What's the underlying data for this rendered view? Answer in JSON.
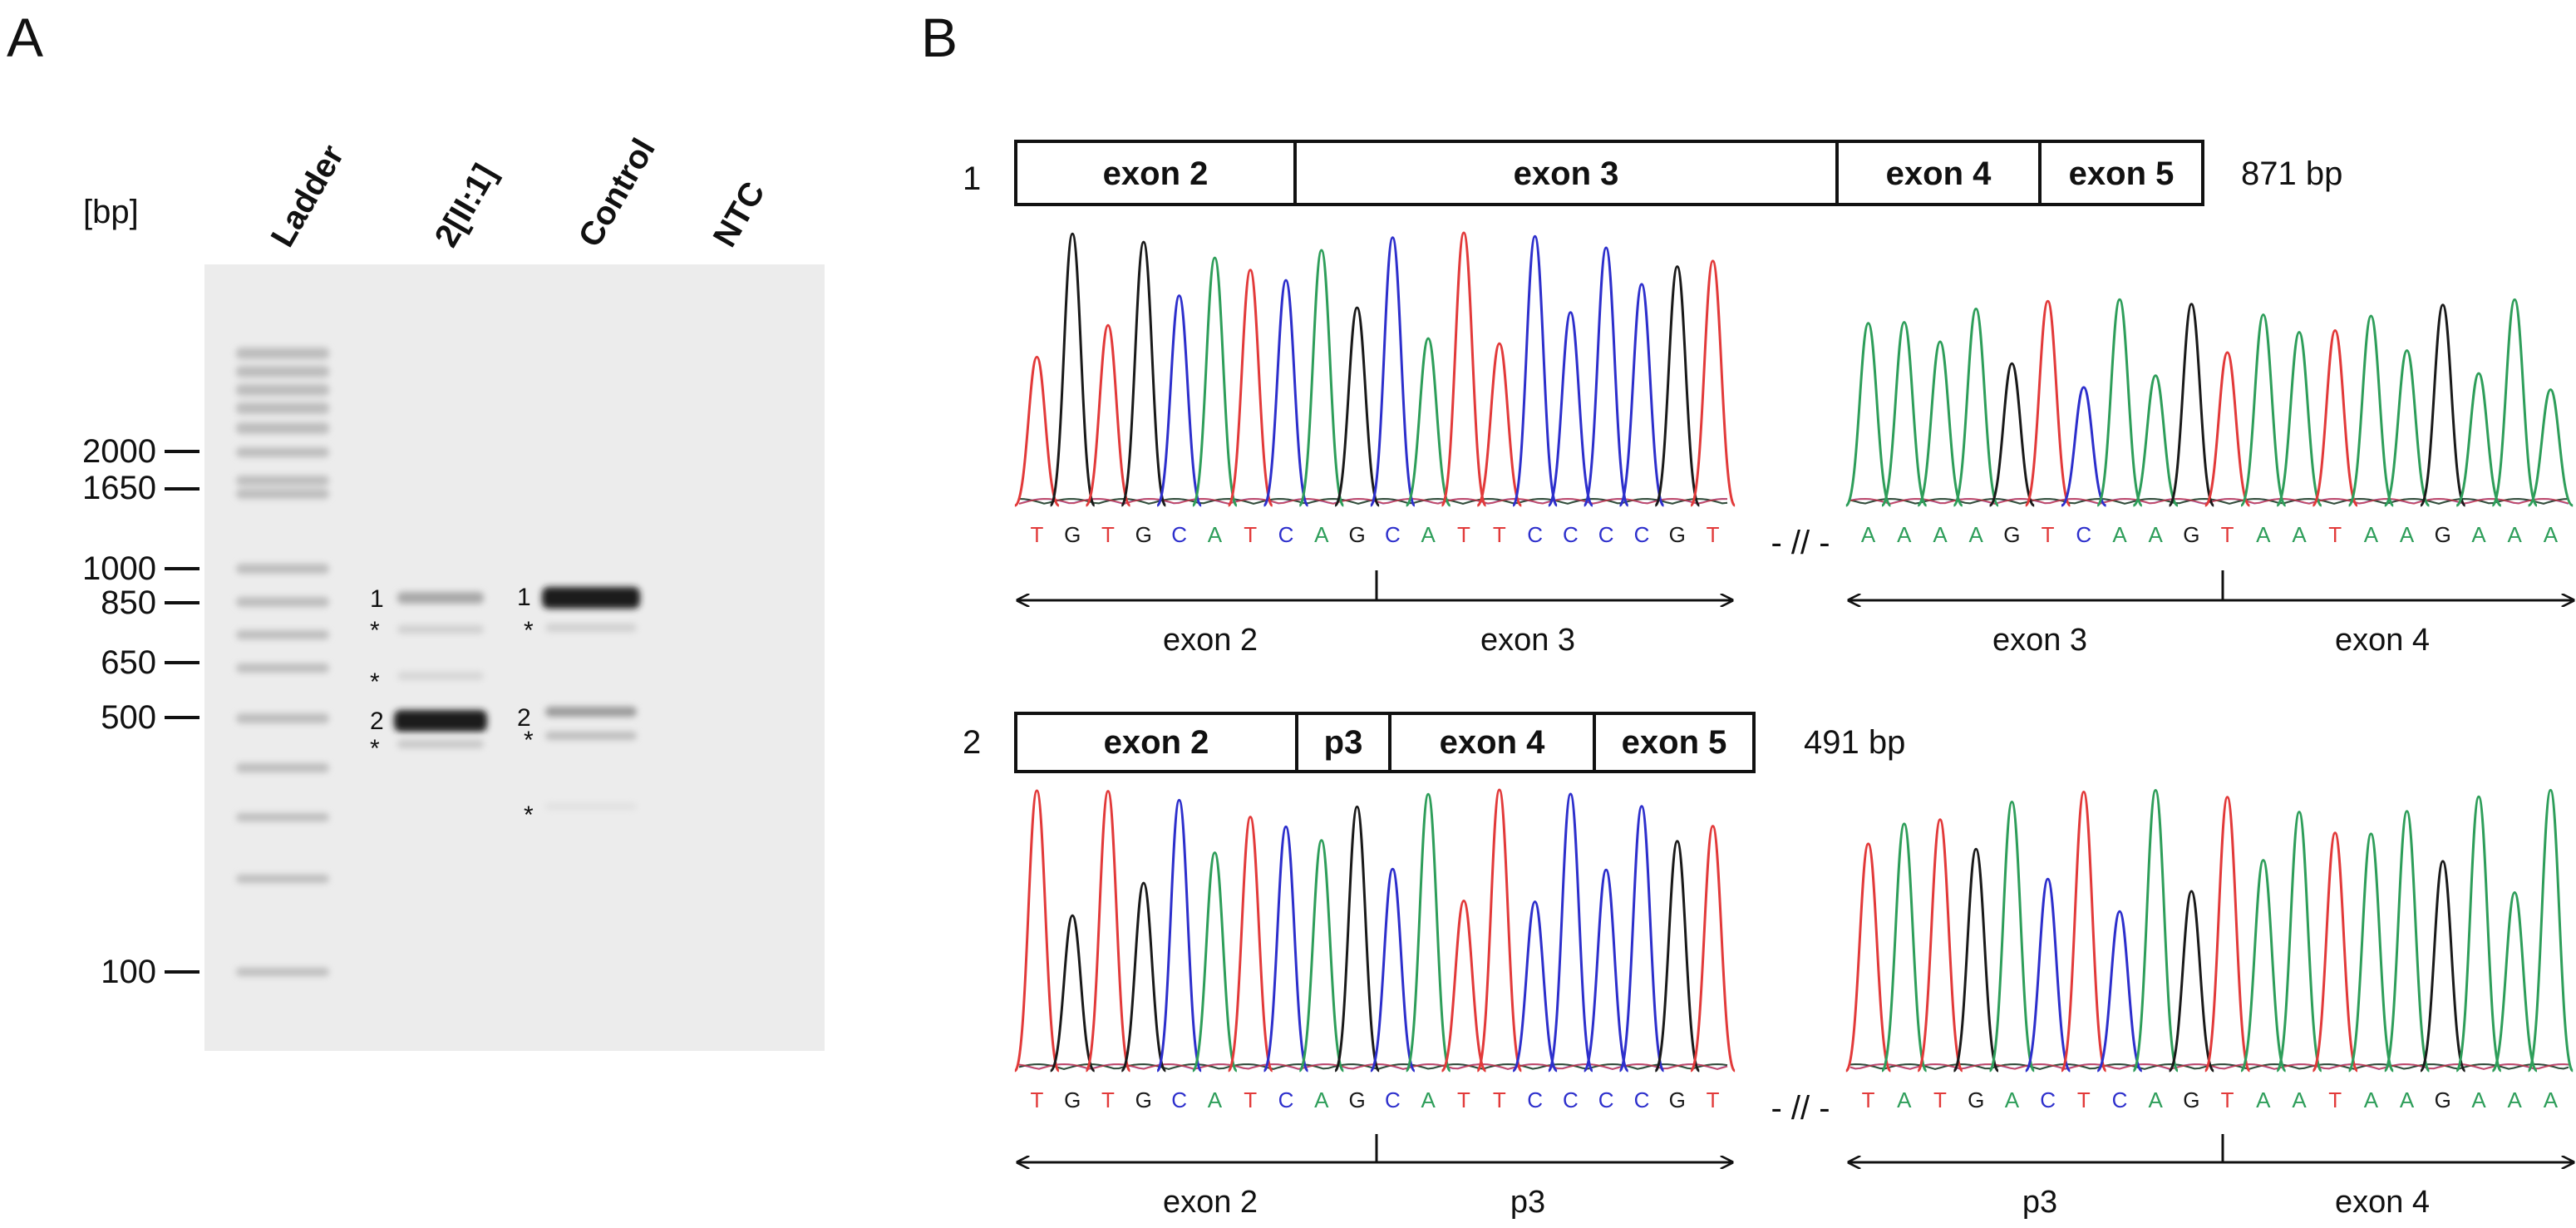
{
  "panel_a": {
    "letter": "A",
    "unit": "[bp]",
    "lanes": [
      "Ladder",
      "2[II:1]",
      "Control",
      "NTC"
    ],
    "markers": [
      "2000",
      "1650",
      "1000",
      "850",
      "650",
      "500",
      "100"
    ],
    "band_labels": [
      "1",
      "2",
      "1",
      "2"
    ],
    "asterisk": "*"
  },
  "panel_b": {
    "letter": "B",
    "separator": "- // -",
    "rows": [
      {
        "number": "1",
        "size": "871 bp",
        "exons": [
          "exon 2",
          "exon 3",
          "exon 4",
          "exon 5"
        ],
        "left_sequence": "TGTGCATCAGCATTCCCCGT",
        "right_sequence": "AAAAGTCAAGTAATAAGAAA",
        "left_regions": [
          "exon 2",
          "exon 3"
        ],
        "right_regions": [
          "exon 3",
          "exon 4"
        ]
      },
      {
        "number": "2",
        "size": "491 bp",
        "exons": [
          "exon 2",
          "p3",
          "exon 4",
          "exon 5"
        ],
        "left_sequence": "TGTGCATCAGCATTCCCCGT",
        "right_sequence": "TATGACTCAGTAATAAGAAA",
        "left_regions": [
          "exon 2",
          "p3"
        ],
        "right_regions": [
          "p3",
          "exon 4"
        ]
      }
    ]
  },
  "colors": {
    "A": "#2e9e5a",
    "C": "#2d2fcc",
    "G": "#1a1a1a",
    "T": "#e23a3a"
  }
}
